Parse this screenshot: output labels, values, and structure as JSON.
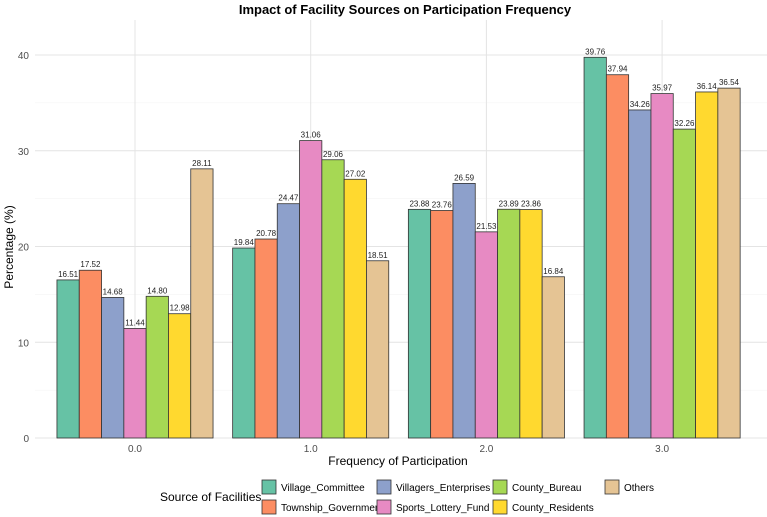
{
  "chart_data": {
    "type": "bar",
    "title": "Impact of Facility Sources on Participation Frequency",
    "xlabel": "Frequency of Participation",
    "ylabel": "Percentage (%)",
    "categories": [
      "0.0",
      "1.0",
      "2.0",
      "3.0"
    ],
    "ylim": [
      0,
      42
    ],
    "yticks": [
      0,
      10,
      20,
      30,
      40
    ],
    "grid": true,
    "legend_title": "Source of Facilities",
    "legend_placement": "bottom",
    "series": [
      {
        "name": "Village_Committee",
        "color": "#66c2a5",
        "values": [
          16.51,
          19.84,
          23.88,
          39.76
        ],
        "labels": [
          "16.51",
          "19.84",
          "23.88",
          "39.76"
        ]
      },
      {
        "name": "Township_Government",
        "color": "#fc8d62",
        "values": [
          17.52,
          20.78,
          23.76,
          37.94
        ],
        "labels": [
          "17.52",
          "20.78",
          "23.76",
          "37.94"
        ]
      },
      {
        "name": "Villagers_Enterprises",
        "color": "#8da0cb",
        "values": [
          14.68,
          24.47,
          26.59,
          34.26
        ],
        "labels": [
          "14.68",
          "24.47",
          "26.59",
          "34.26"
        ]
      },
      {
        "name": "Sports_Lottery_Fund",
        "color": "#e78ac3",
        "values": [
          11.44,
          31.06,
          21.53,
          35.97
        ],
        "labels": [
          "11.44",
          "31.06",
          "21.53",
          "35.97"
        ]
      },
      {
        "name": "County_Bureau",
        "color": "#a6d854",
        "values": [
          14.8,
          29.06,
          23.89,
          32.26
        ],
        "labels": [
          "14.80",
          "29.06",
          "23.89",
          "32.26"
        ]
      },
      {
        "name": "County_Residents",
        "color": "#ffd92f",
        "values": [
          12.98,
          27.02,
          23.86,
          36.14
        ],
        "labels": [
          "12.98",
          "27.02",
          "23.86",
          "36.14"
        ]
      },
      {
        "name": "Others",
        "color": "#e5c494",
        "values": [
          28.11,
          18.51,
          16.84,
          36.54
        ],
        "labels": [
          "28.11",
          "18.51",
          "16.84",
          "36.54"
        ]
      }
    ]
  }
}
